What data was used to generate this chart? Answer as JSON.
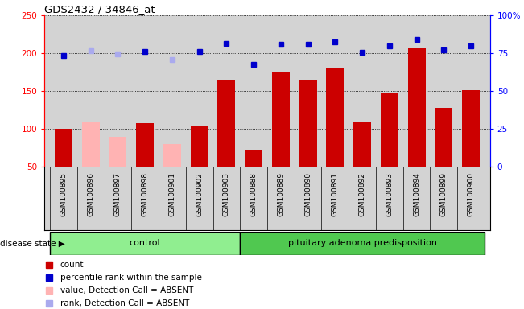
{
  "title": "GDS2432 / 34846_at",
  "samples": [
    "GSM100895",
    "GSM100896",
    "GSM100897",
    "GSM100898",
    "GSM100901",
    "GSM100902",
    "GSM100903",
    "GSM100888",
    "GSM100889",
    "GSM100890",
    "GSM100891",
    "GSM100892",
    "GSM100893",
    "GSM100894",
    "GSM100899",
    "GSM100900"
  ],
  "counts": [
    100,
    110,
    90,
    108,
    80,
    105,
    165,
    72,
    175,
    165,
    180,
    110,
    147,
    207,
    128,
    151
  ],
  "absent": [
    false,
    true,
    true,
    false,
    true,
    false,
    false,
    false,
    false,
    false,
    false,
    false,
    false,
    false,
    false,
    false
  ],
  "percentile_ranks": [
    197,
    203,
    199,
    202,
    192,
    202,
    213,
    185,
    212,
    212,
    215,
    201,
    210,
    218,
    205,
    210
  ],
  "rank_absent": [
    false,
    true,
    true,
    false,
    true,
    false,
    false,
    false,
    false,
    false,
    false,
    false,
    false,
    false,
    false,
    false
  ],
  "control_indices": [
    0,
    6
  ],
  "pituitary_indices": [
    7,
    15
  ],
  "group_labels": [
    "control",
    "pituitary adenoma predisposition"
  ],
  "ylim_left": [
    50,
    250
  ],
  "ylim_right": [
    0,
    100
  ],
  "yticks_left": [
    50,
    100,
    150,
    200,
    250
  ],
  "yticks_right": [
    0,
    25,
    50,
    75,
    100
  ],
  "ytick_right_labels": [
    "0",
    "25",
    "50",
    "75",
    "100%"
  ],
  "bar_color_present": "#cc0000",
  "bar_color_absent": "#ffb3b3",
  "dot_color_present": "#0000cc",
  "dot_color_absent": "#aaaaee",
  "grid_color": "#000000",
  "bg_color": "#d3d3d3",
  "group_bg_color": "#90ee90",
  "group_bg_color_dark": "#50c850",
  "legend_items": [
    {
      "label": "count",
      "color": "#cc0000"
    },
    {
      "label": "percentile rank within the sample",
      "color": "#0000cc"
    },
    {
      "label": "value, Detection Call = ABSENT",
      "color": "#ffb3b3"
    },
    {
      "label": "rank, Detection Call = ABSENT",
      "color": "#aaaaee"
    }
  ]
}
